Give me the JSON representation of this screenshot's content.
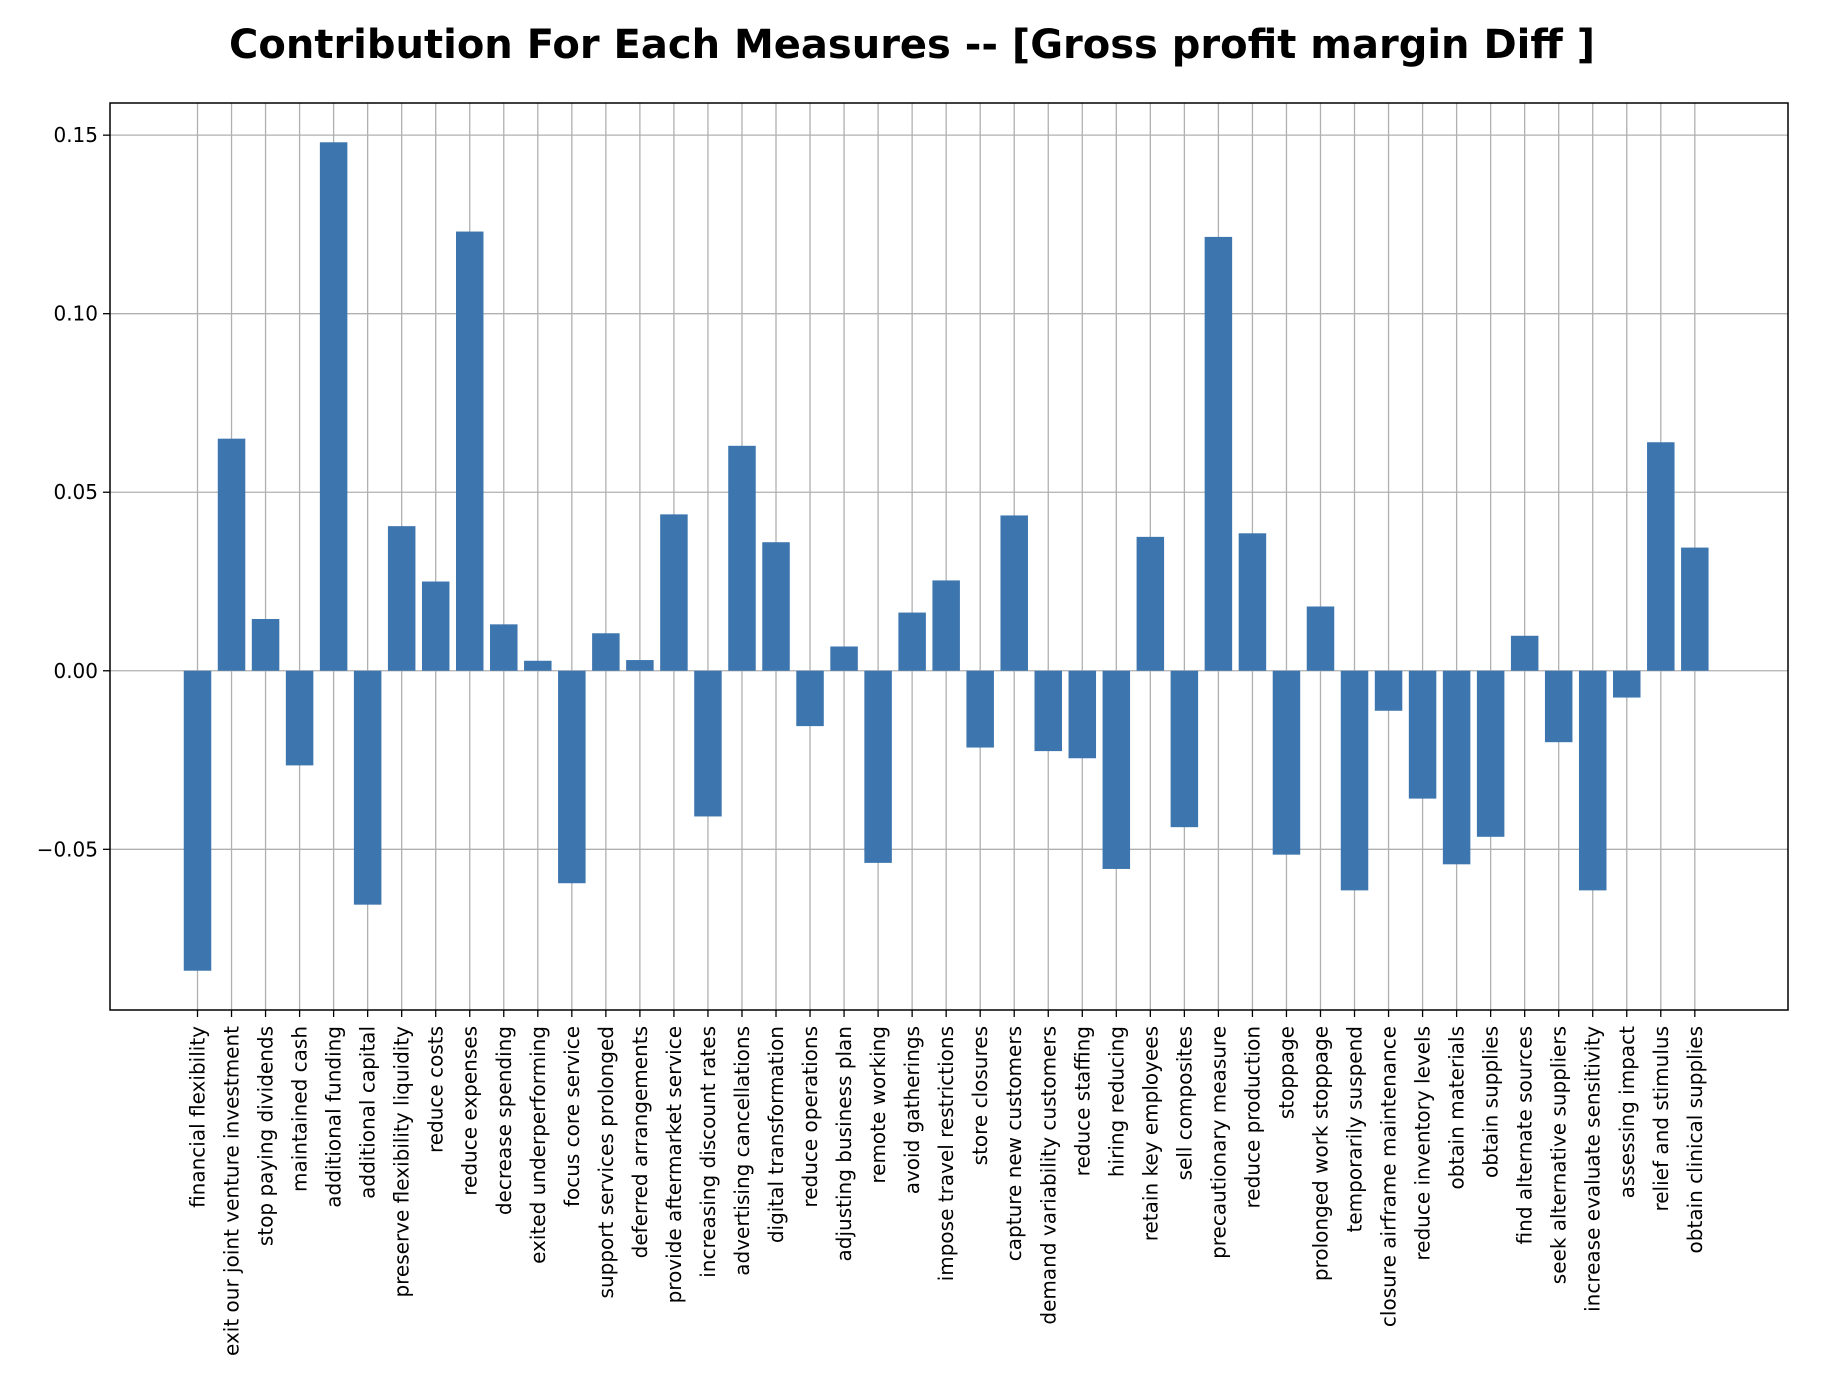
{
  "chart_data": {
    "type": "bar",
    "title": "Contribution For Each Measures -- [Gross profit margin Diff ]",
    "xlabel": "",
    "ylabel": "",
    "ylim": [
      -0.095,
      0.159
    ],
    "yticks": [
      -0.05,
      0.0,
      0.05,
      0.1,
      0.15
    ],
    "ytick_labels": [
      "−0.05",
      "0.00",
      "0.05",
      "0.10",
      "0.15"
    ],
    "grid": true,
    "bar_color": "#3d76af",
    "categories": [
      "financial flexibility",
      "exit our joint venture investment",
      "stop paying dividends",
      "maintained cash",
      "additional funding",
      "additional capital",
      "preserve flexibility liquidity",
      "reduce costs",
      "reduce expenses",
      "decrease spending",
      "exited underperforming",
      "focus core service",
      "support services prolonged",
      "deferred arrangements",
      "provide aftermarket service",
      "increasing discount rates",
      "advertising cancellations",
      "digital transformation",
      "reduce operations",
      "adjusting business plan",
      "remote working",
      "avoid gatherings",
      "impose travel restrictions",
      "store closures",
      "capture new customers",
      "demand variability customers",
      "reduce staffing",
      "hiring reducing",
      "retain key employees",
      "sell composites",
      "precautionary measure",
      "reduce production",
      "stoppage",
      "prolonged work stoppage",
      "temporarily suspend",
      "closure airframe maintenance",
      "reduce inventory levels",
      "obtain materials",
      "obtain supplies",
      "find alternate sources",
      "seek alternative suppliers",
      "increase evaluate sensitivity",
      "assessing impact",
      "relief and stimulus",
      "obtain clinical supplies"
    ],
    "values": [
      -0.084,
      0.065,
      0.0145,
      -0.0265,
      0.148,
      -0.0655,
      0.0405,
      0.025,
      0.123,
      0.013,
      0.0028,
      -0.0595,
      0.0105,
      0.003,
      0.0438,
      -0.0408,
      0.063,
      0.036,
      -0.0155,
      0.0068,
      -0.0538,
      0.0163,
      0.0253,
      -0.0215,
      0.0435,
      -0.0225,
      -0.0245,
      -0.0555,
      0.0375,
      -0.0438,
      0.1215,
      0.0385,
      -0.0515,
      0.018,
      -0.0615,
      -0.0112,
      -0.0358,
      -0.0542,
      -0.0465,
      0.0098,
      -0.02,
      -0.0615,
      -0.0075,
      0.064,
      0.0345
    ]
  }
}
